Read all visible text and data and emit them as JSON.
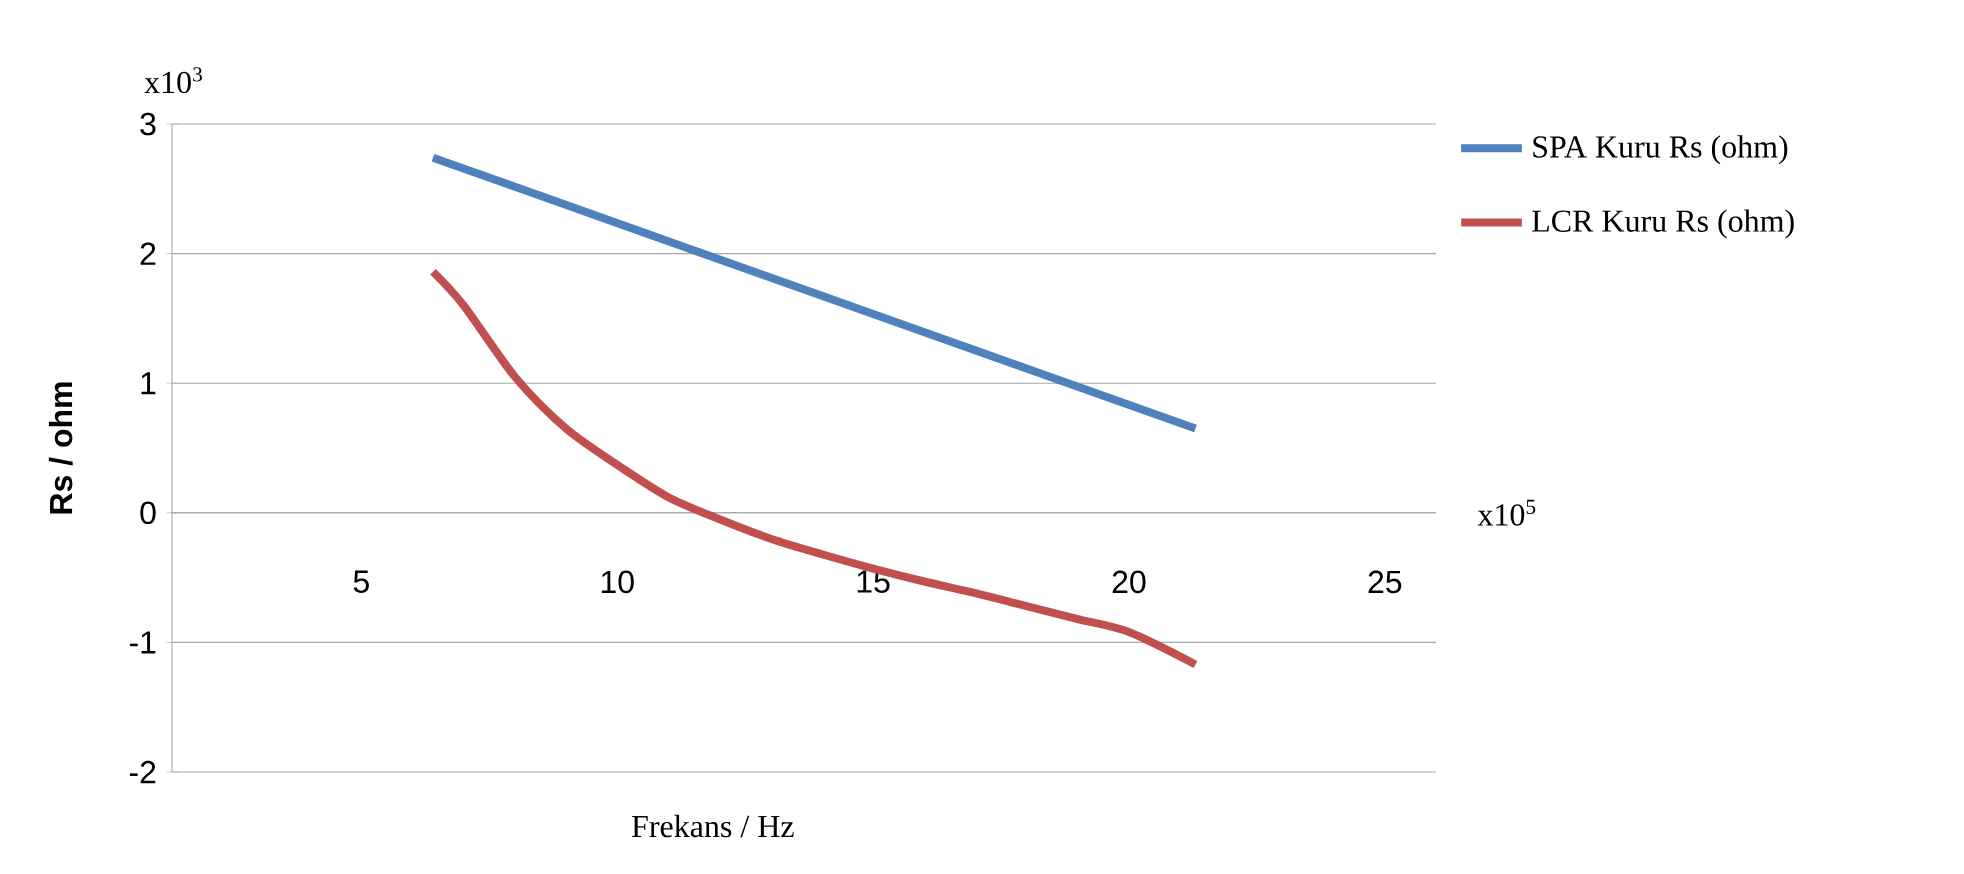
{
  "chart_data": {
    "type": "line",
    "xlabel": "Frekans / Hz",
    "ylabel": "Rs / ohm",
    "annotations": [
      "x10$^{3}$",
      "x10$^{5}$"
    ],
    "xlim": [
      1.3,
      26
    ],
    "xticks": [
      5,
      10,
      15,
      20,
      25
    ],
    "ylim": [
      -2,
      3
    ],
    "yticks": [
      -2,
      -1,
      0,
      1,
      2,
      3
    ],
    "grid": "y",
    "legend": "right",
    "marker": "none",
    "line_style": "solid",
    "series": [
      {
        "name": "SPA  Kuru Rs (ohm)",
        "color": "#4f81bd",
        "x": [
          6.4,
          21.3
        ],
        "values": [
          2.74,
          0.65
        ]
      },
      {
        "name": "LCR Kuru Rs (ohm)",
        "color": "#c0504d",
        "x": [
          6.4,
          7,
          8,
          9,
          10,
          11,
          12,
          13,
          14,
          15,
          16,
          17,
          18,
          19,
          20,
          21.3
        ],
        "values": [
          1.86,
          1.6,
          1.05,
          0.65,
          0.37,
          0.12,
          -0.05,
          -0.2,
          -0.32,
          -0.43,
          -0.53,
          -0.62,
          -0.72,
          -0.82,
          -0.92,
          -1.17
        ]
      }
    ]
  }
}
